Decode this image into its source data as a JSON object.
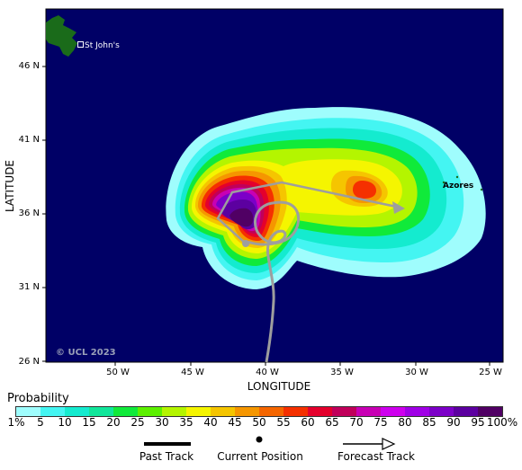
{
  "map": {
    "y_axis_title": "LATITUDE",
    "x_axis_title": "LONGITUDE",
    "lat_labels": [
      "46 N",
      "41 N",
      "36 N",
      "31 N",
      "26 N"
    ],
    "lon_labels": [
      "50 W",
      "45 W",
      "40 W",
      "35 W",
      "30 W",
      "25 W"
    ],
    "ocean_color": "#000066",
    "land_color": "#1a6b1a",
    "places": {
      "st_johns": "St John's",
      "azores": "Azores"
    },
    "copyright": "© UCL 2023"
  },
  "legend": {
    "title": "Probability",
    "colors": [
      "#9ffdfd",
      "#44f5f2",
      "#14ebcf",
      "#10e69a",
      "#10ea3a",
      "#5cf000",
      "#b4f500",
      "#f5f500",
      "#f5c500",
      "#f59600",
      "#f56600",
      "#f53000",
      "#e4002c",
      "#c0005a",
      "#c800b4",
      "#ce00ee",
      "#a000e6",
      "#7c00c8",
      "#5c00a0",
      "#500064"
    ],
    "ticks": [
      "1%",
      "5",
      "10",
      "15",
      "20",
      "25",
      "30",
      "35",
      "40",
      "45",
      "50",
      "55",
      "60",
      "65",
      "70",
      "75",
      "80",
      "85",
      "90",
      "95",
      "100%"
    ]
  },
  "key": {
    "past": "Past Track",
    "current": "Current Position",
    "forecast": "Forecast Track"
  }
}
